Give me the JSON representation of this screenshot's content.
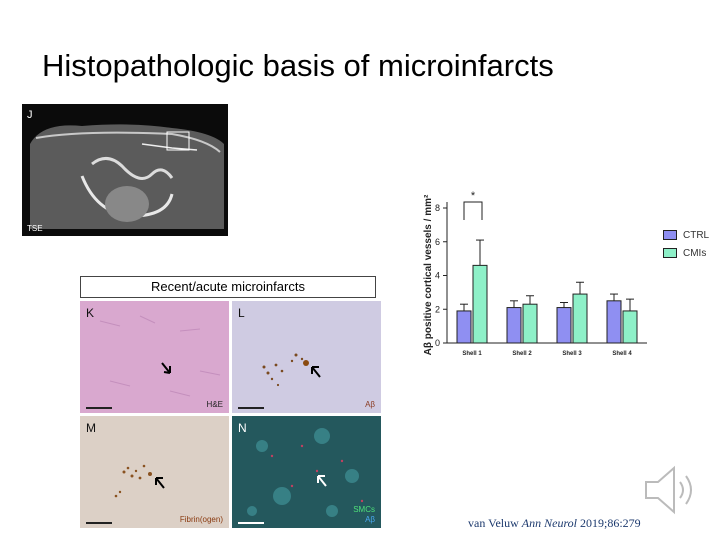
{
  "slide": {
    "title": "Histopathologic basis of microinfarcts"
  },
  "mri_panel": {
    "letter": "J",
    "stain": "TSE"
  },
  "histology": {
    "caption": "Recent/acute microinfarcts",
    "tiles": [
      {
        "letter": "K",
        "stain": "H&E"
      },
      {
        "letter": "L",
        "stain": "Aβ"
      },
      {
        "letter": "M",
        "stain": "Fibrin(ogen)"
      },
      {
        "letter": "N",
        "stain_1": "SMCs",
        "stain_2": "Aβ"
      }
    ]
  },
  "chart_data": {
    "type": "bar",
    "title": "",
    "xlabel": "",
    "ylabel": "Aβ positive cortical vessels / mm²",
    "ylim": [
      0,
      8
    ],
    "yticks": [
      "0",
      "2",
      "4",
      "6",
      "8"
    ],
    "categories": [
      "Shell 1",
      "Shell 2",
      "Shell 3",
      "Shell 4"
    ],
    "series": [
      {
        "name": "CTRL",
        "color": "#8f8ff2",
        "values": [
          1.9,
          2.1,
          2.1,
          2.5
        ],
        "errors": [
          0.4,
          0.4,
          0.3,
          0.4
        ]
      },
      {
        "name": "CMIs",
        "color": "#8ef0c8",
        "values": [
          4.6,
          2.3,
          2.9,
          1.9
        ],
        "errors": [
          1.5,
          0.5,
          0.7,
          0.7
        ]
      }
    ],
    "annotation": "*",
    "legend_position": "right"
  },
  "citation": {
    "authors": "van Veluw",
    "journal": "Ann Neurol",
    "details": "2019;86:279"
  },
  "icons": {
    "audio": "speaker-icon"
  }
}
